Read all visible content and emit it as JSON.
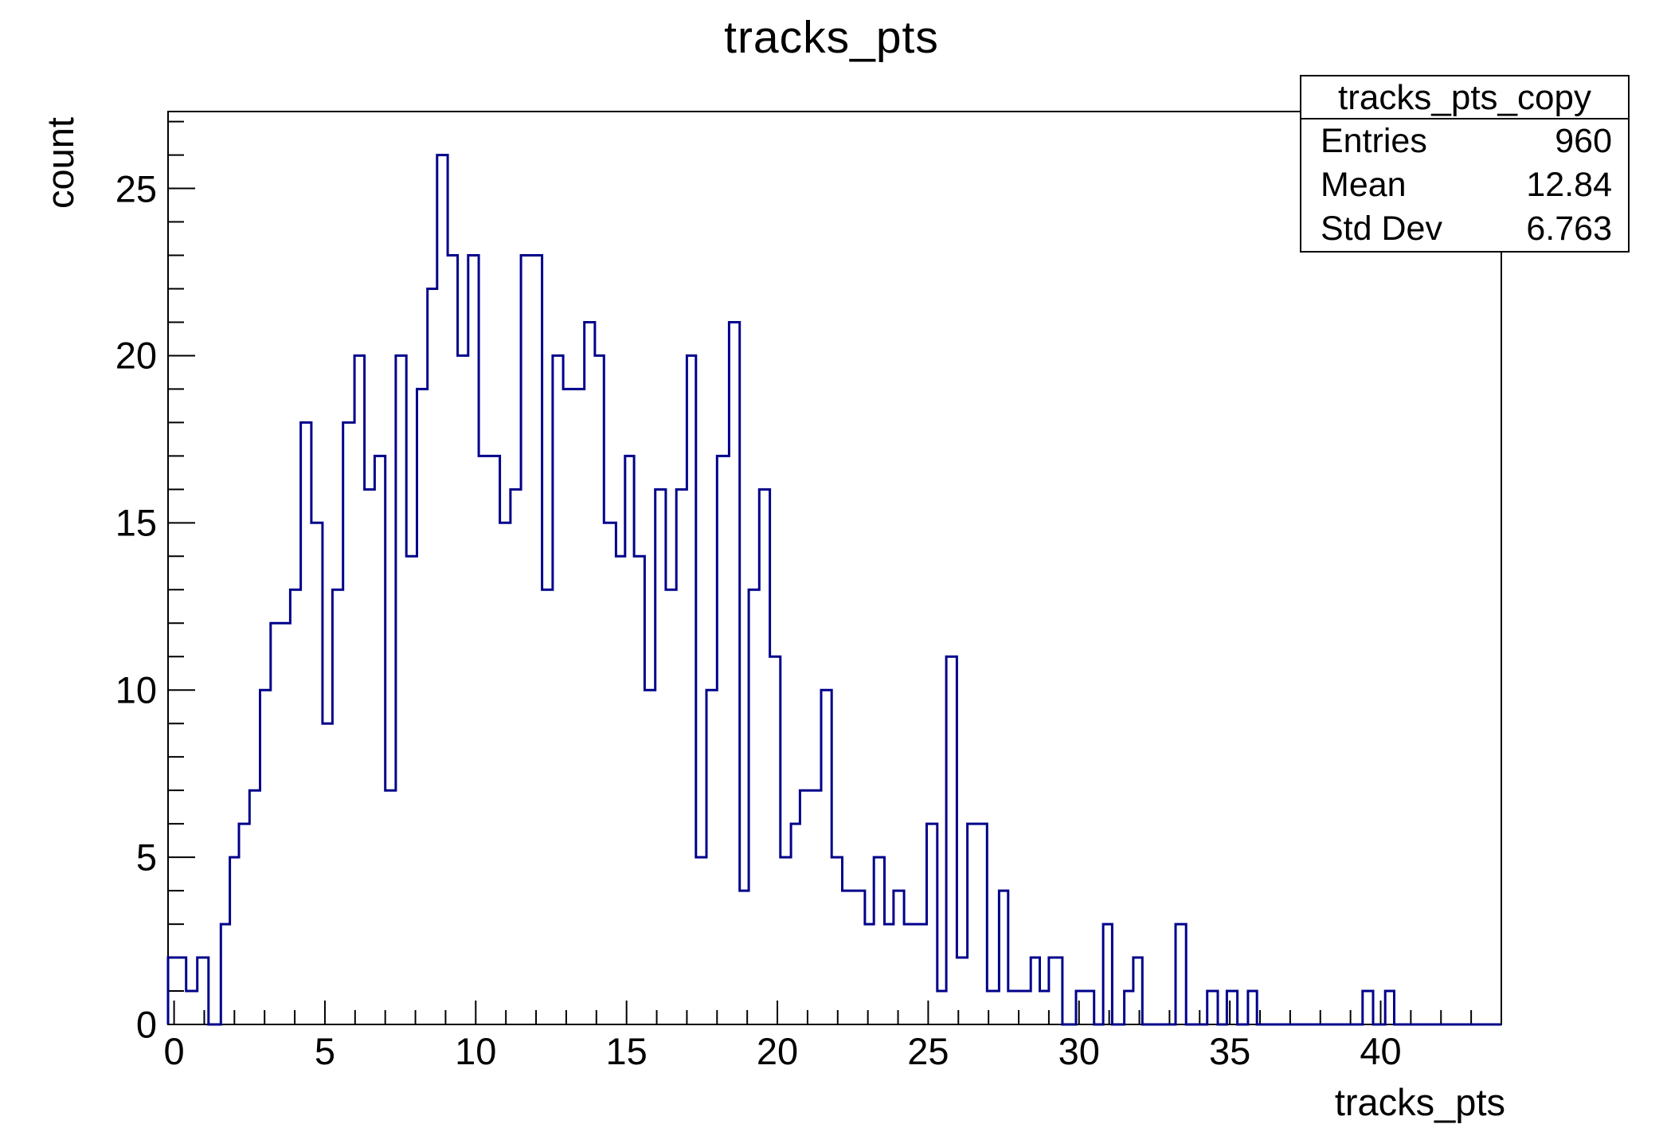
{
  "window": {
    "background": "#ffffff"
  },
  "header": {
    "title": "tracks_pts"
  },
  "axes": {
    "y_title": "count",
    "x_title": "tracks_pts",
    "x_tick_labels": [
      "0",
      "5",
      "10",
      "15",
      "20",
      "25",
      "30",
      "35",
      "40"
    ],
    "y_tick_labels": [
      "0",
      "5",
      "10",
      "15",
      "20",
      "25"
    ]
  },
  "stats_box": {
    "title": "tracks_pts_copy",
    "rows": [
      {
        "label": "Entries",
        "value": "960"
      },
      {
        "label": "Mean",
        "value": "12.84"
      },
      {
        "label": "Std Dev",
        "value": "6.763"
      }
    ]
  },
  "chart_data": {
    "type": "bar",
    "subtype": "step-histogram",
    "title": "tracks_pts",
    "xlabel": "tracks_pts",
    "ylabel": "count",
    "xlim": [
      -0.2,
      44.0
    ],
    "ylim": [
      0,
      27.3
    ],
    "x_major_ticks": [
      0,
      5,
      10,
      15,
      20,
      25,
      30,
      35,
      40
    ],
    "x_minor_tick_step": 1,
    "x_minor_tick_max": 43,
    "y_major_ticks": [
      0,
      5,
      10,
      15,
      20,
      25
    ],
    "y_minor_tick_step": 1,
    "y_minor_tick_max": 27,
    "grid": false,
    "legend": false,
    "line_color": "#00008b",
    "line_width": 3,
    "bin_width_approx": 0.36,
    "entries": 960,
    "mean": 12.84,
    "std_dev": 6.763,
    "steps_format": "[x_left_edge, count] ; each level holds until next edge ; last level ends at xlim max",
    "steps": [
      [
        -0.2,
        2
      ],
      [
        0.4,
        1
      ],
      [
        0.77,
        2
      ],
      [
        1.14,
        0
      ],
      [
        1.55,
        3
      ],
      [
        1.85,
        5
      ],
      [
        2.15,
        6
      ],
      [
        2.5,
        7
      ],
      [
        2.85,
        10
      ],
      [
        3.2,
        12
      ],
      [
        3.85,
        13
      ],
      [
        4.2,
        18
      ],
      [
        4.55,
        15
      ],
      [
        4.92,
        9
      ],
      [
        5.25,
        13
      ],
      [
        5.6,
        18
      ],
      [
        5.98,
        20
      ],
      [
        6.31,
        16
      ],
      [
        6.65,
        17
      ],
      [
        7.0,
        7
      ],
      [
        7.35,
        20
      ],
      [
        7.7,
        14
      ],
      [
        8.05,
        19
      ],
      [
        8.4,
        22
      ],
      [
        8.72,
        26
      ],
      [
        9.07,
        23
      ],
      [
        9.4,
        20
      ],
      [
        9.75,
        23
      ],
      [
        10.1,
        17
      ],
      [
        10.8,
        15
      ],
      [
        11.15,
        16
      ],
      [
        11.5,
        23
      ],
      [
        12.2,
        13
      ],
      [
        12.55,
        20
      ],
      [
        12.9,
        19
      ],
      [
        13.6,
        21
      ],
      [
        13.95,
        20
      ],
      [
        14.25,
        15
      ],
      [
        14.65,
        14
      ],
      [
        14.95,
        17
      ],
      [
        15.25,
        14
      ],
      [
        15.6,
        10
      ],
      [
        15.95,
        16
      ],
      [
        16.3,
        13
      ],
      [
        16.65,
        16
      ],
      [
        17.0,
        20
      ],
      [
        17.3,
        5
      ],
      [
        17.65,
        10
      ],
      [
        18.0,
        17
      ],
      [
        18.4,
        21
      ],
      [
        18.75,
        4
      ],
      [
        19.05,
        13
      ],
      [
        19.4,
        16
      ],
      [
        19.75,
        11
      ],
      [
        20.1,
        5
      ],
      [
        20.45,
        6
      ],
      [
        20.75,
        7
      ],
      [
        21.45,
        10
      ],
      [
        21.8,
        5
      ],
      [
        22.15,
        4
      ],
      [
        22.9,
        3
      ],
      [
        23.2,
        5
      ],
      [
        23.55,
        3
      ],
      [
        23.85,
        4
      ],
      [
        24.2,
        3
      ],
      [
        24.95,
        6
      ],
      [
        25.3,
        1
      ],
      [
        25.6,
        11
      ],
      [
        25.95,
        2
      ],
      [
        26.3,
        6
      ],
      [
        26.95,
        1
      ],
      [
        27.35,
        4
      ],
      [
        27.65,
        1
      ],
      [
        28.4,
        2
      ],
      [
        28.7,
        1
      ],
      [
        29.0,
        2
      ],
      [
        29.45,
        0
      ],
      [
        29.9,
        1
      ],
      [
        30.5,
        0
      ],
      [
        30.8,
        3
      ],
      [
        31.1,
        0
      ],
      [
        31.5,
        1
      ],
      [
        31.8,
        2
      ],
      [
        32.1,
        0
      ],
      [
        33.2,
        3
      ],
      [
        33.55,
        0
      ],
      [
        34.25,
        1
      ],
      [
        34.6,
        0
      ],
      [
        34.9,
        1
      ],
      [
        35.25,
        0
      ],
      [
        35.6,
        1
      ],
      [
        35.9,
        0
      ],
      [
        39.4,
        1
      ],
      [
        39.75,
        0
      ],
      [
        40.15,
        1
      ],
      [
        40.45,
        0
      ]
    ]
  }
}
